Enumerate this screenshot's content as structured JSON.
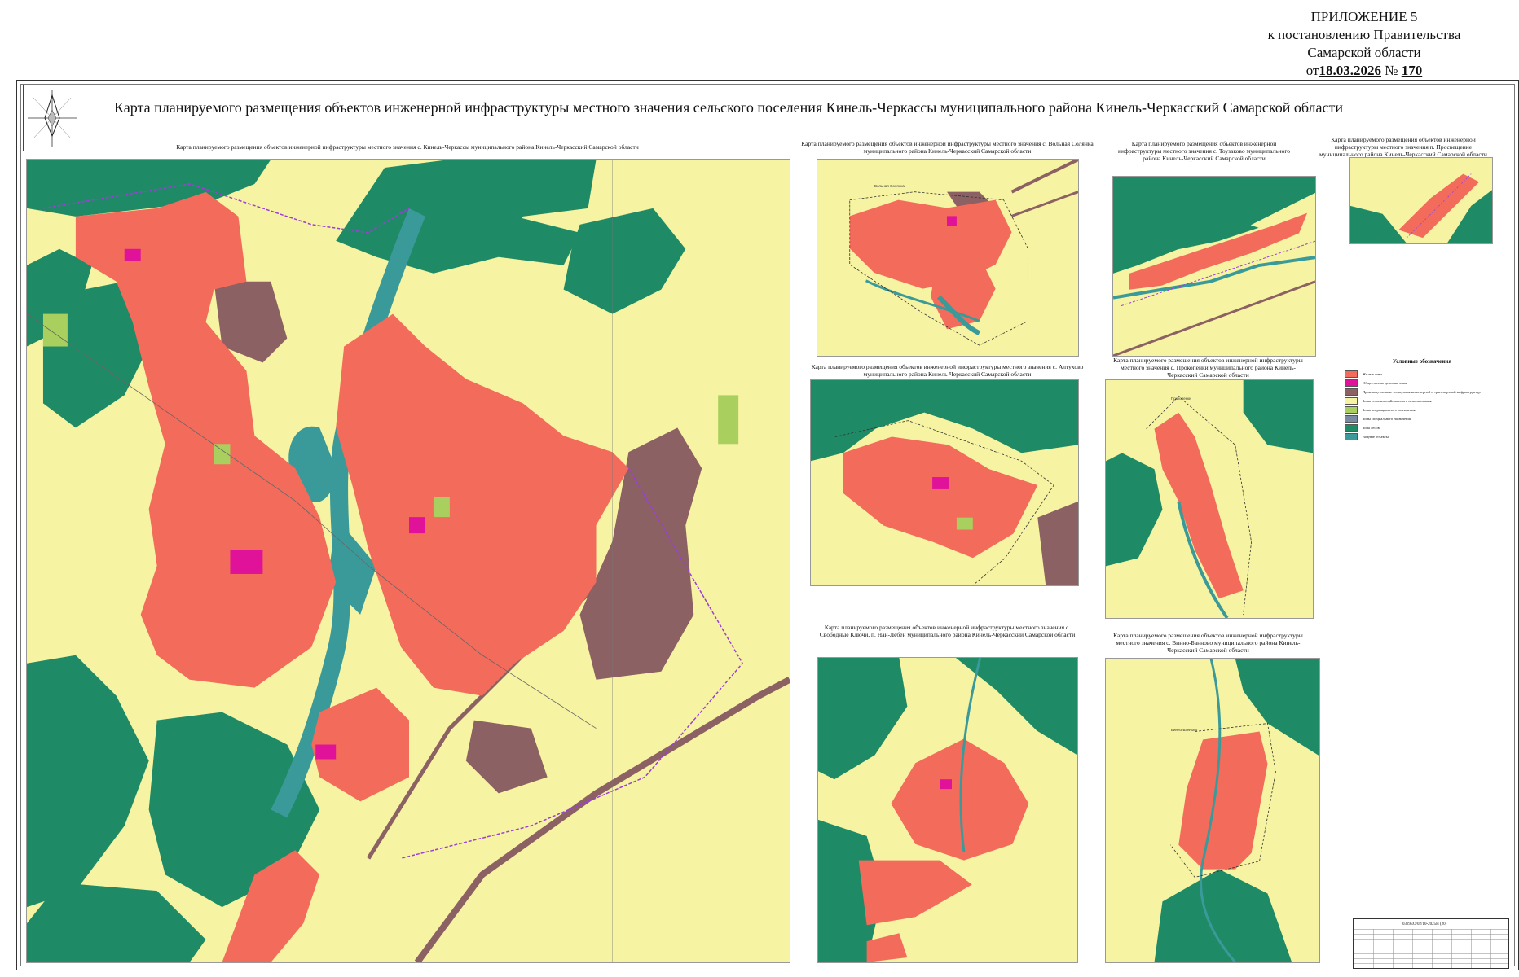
{
  "appendix": {
    "line1": "ПРИЛОЖЕНИЕ 5",
    "line2": "к постановлению Правительства",
    "line3": "Самарской области",
    "from": "от",
    "date": "18.03.2026",
    "no": "№",
    "number": "170"
  },
  "main_title": "Карта планируемого размещения объектов инженерной инфраструктуры местного значения сельского поселения Кинель-Черкассы муниципального района Кинель-Черкасский Самарской области",
  "maps": {
    "main": "Карта планируемого размещения объектов инженерной инфраструктуры местного значения с. Кинель-Черкассы муниципального района Кинель-Черкасский Самарской области",
    "volnaya": "Карта планируемого размещения объектов инженерной инфраструктуры местного значения с. Вольная Солянка муниципального района Кинель-Черкасский Самарской области",
    "toyzakovo": "Карта планируемого размещения объектов инженерной инфраструктуры местного значения с. Тоузаково муниципального района Кинель-Черкасский Самарской области",
    "prosveshchenie": "Карта планируемого размещения объектов инженерной инфраструктуры местного значения п. Просвещение муниципального района Кинель-Черкасский Самарской области",
    "altukhovo": "Карта планируемого размещения объектов инженерной инфраструктуры местного значения с. Алтухово муниципального района Кинель-Черкасский Самарской области",
    "prokopenki": "Карта планируемого размещения объектов инженерной инфраструктуры местного значения с. Прокопенки муниципального района Кинель-Черкасский Самарской области",
    "svobodnye": "Карта планируемого размещения объектов инженерной инфраструктуры местного значения с. Свободные Ключи, п. Най-Лебен муниципального района Кинель-Черкасский Самарской области",
    "vinno": "Карта планируемого размещения объектов инженерной инфраструктуры местного значения с. Винно-Банново муниципального района Кинель-Черкасский Самарской области"
  },
  "place_labels": {
    "volnaya": "Вольная Солянка",
    "prokopenki": "Прокопенки",
    "vinno": "Винно-Банново"
  },
  "legend": {
    "title": "Условные обозначения",
    "items": [
      {
        "label": "Жилые зоны",
        "color": "#f26b5b"
      },
      {
        "label": "Общественно-деловые зоны",
        "color": "#e0129a"
      },
      {
        "label": "Производственные зоны, зоны инженерной и транспортной инфраструктур",
        "color": "#8c6163"
      },
      {
        "label": "Зоны сельскохозяйственного использования",
        "color": "#f6f3a2"
      },
      {
        "label": "Зоны рекреационного назначения",
        "color": "#a9cf5e"
      },
      {
        "label": "Зоны специального назначения",
        "color": "#7a8aa0"
      },
      {
        "label": "Зона лесов",
        "color": "#1f8a66"
      },
      {
        "label": "Водные объекты",
        "color": "#3a9a9a"
      }
    ]
  },
  "stamp": {
    "code": "0329ЕО/02/10-2025Н (20)"
  }
}
